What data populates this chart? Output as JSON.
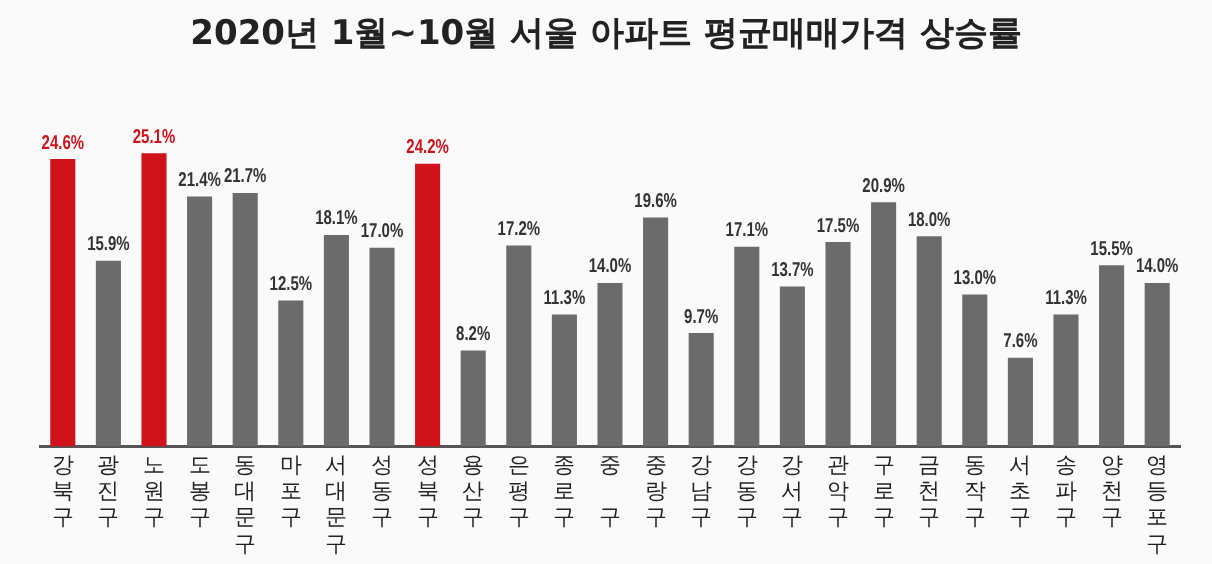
{
  "chart_data": {
    "type": "bar",
    "title": "2020년 1월~10월 서울 아파트 평균매매가격 상승률",
    "categories": [
      "강북구",
      "광진구",
      "노원구",
      "도봉구",
      "동대문구",
      "마포구",
      "서대문구",
      "성동구",
      "성북구",
      "용산구",
      "은평구",
      "종로구",
      "중 구",
      "중랑구",
      "강남구",
      "강동구",
      "강서구",
      "관악구",
      "구로구",
      "금천구",
      "동작구",
      "서초구",
      "송파구",
      "양천구",
      "영등포구"
    ],
    "values": [
      24.6,
      15.9,
      25.1,
      21.4,
      21.7,
      12.5,
      18.1,
      17.0,
      24.2,
      8.2,
      17.2,
      11.3,
      14.0,
      19.6,
      9.7,
      17.1,
      13.7,
      17.5,
      20.9,
      18.0,
      13.0,
      7.6,
      11.3,
      15.5,
      14.0
    ],
    "value_labels": [
      "24.6%",
      "15.9%",
      "25.1%",
      "21.4%",
      "21.7%",
      "12.5%",
      "18.1%",
      "17.0%",
      "24.2%",
      "8.2%",
      "17.2%",
      "11.3%",
      "14.0%",
      "19.6%",
      "9.7%",
      "17.1%",
      "13.7%",
      "17.5%",
      "20.9%",
      "18.0%",
      "13.0%",
      "7.6%",
      "11.3%",
      "15.5%",
      "14.0%"
    ],
    "colors": [
      "#d0121b",
      "#6b6b6b",
      "#d0121b",
      "#6b6b6b",
      "#6b6b6b",
      "#6b6b6b",
      "#6b6b6b",
      "#6b6b6b",
      "#d0121b",
      "#6b6b6b",
      "#6b6b6b",
      "#6b6b6b",
      "#6b6b6b",
      "#6b6b6b",
      "#6b6b6b",
      "#6b6b6b",
      "#6b6b6b",
      "#6b6b6b",
      "#6b6b6b",
      "#6b6b6b",
      "#6b6b6b",
      "#6b6b6b",
      "#6b6b6b",
      "#6b6b6b",
      "#6b6b6b"
    ],
    "legend": false,
    "tick_labels": "x"
  }
}
